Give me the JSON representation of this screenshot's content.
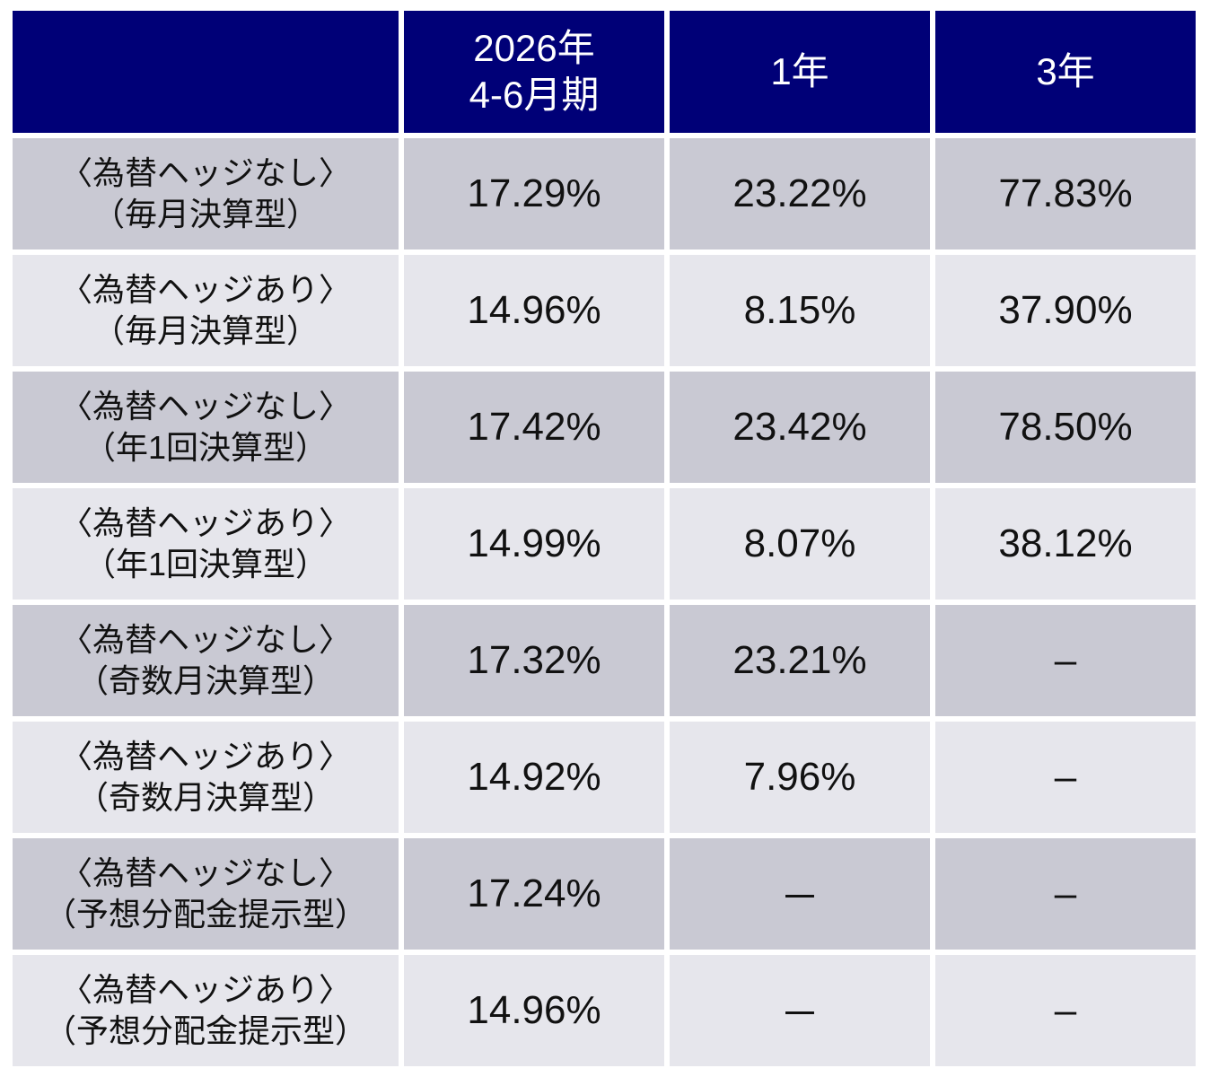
{
  "header": {
    "col1_line1": "2026年",
    "col1_line2": "4-6月期",
    "col2": "1年",
    "col3": "3年"
  },
  "rows": [
    {
      "label1": "〈為替ヘッジなし〉",
      "label2": "（毎月決算型）",
      "v1": "17.29%",
      "v2": "23.22%",
      "v3": "77.83%"
    },
    {
      "label1": "〈為替ヘッジあり〉",
      "label2": "（毎月決算型）",
      "v1": "14.96%",
      "v2": "8.15%",
      "v3": "37.90%"
    },
    {
      "label1": "〈為替ヘッジなし〉",
      "label2": "（年1回決算型）",
      "v1": "17.42%",
      "v2": "23.42%",
      "v3": "78.50%"
    },
    {
      "label1": "〈為替ヘッジあり〉",
      "label2": "（年1回決算型）",
      "v1": "14.99%",
      "v2": "8.07%",
      "v3": "38.12%"
    },
    {
      "label1": "〈為替ヘッジなし〉",
      "label2": "（奇数月決算型）",
      "v1": "17.32%",
      "v2": "23.21%",
      "v3": "–"
    },
    {
      "label1": "〈為替ヘッジあり〉",
      "label2": "（奇数月決算型）",
      "v1": "14.92%",
      "v2": "7.96%",
      "v3": "–"
    },
    {
      "label1": "〈為替ヘッジなし〉",
      "label2": "（予想分配金提示型）",
      "v1": "17.24%",
      "v2": "－",
      "v3": "–"
    },
    {
      "label1": "〈為替ヘッジあり〉",
      "label2": "（予想分配金提示型）",
      "v1": "14.96%",
      "v2": "－",
      "v3": "–"
    }
  ],
  "colors": {
    "header_bg": "#000077",
    "row_dark": "#c9c9d3",
    "row_light": "#e6e6ec"
  }
}
